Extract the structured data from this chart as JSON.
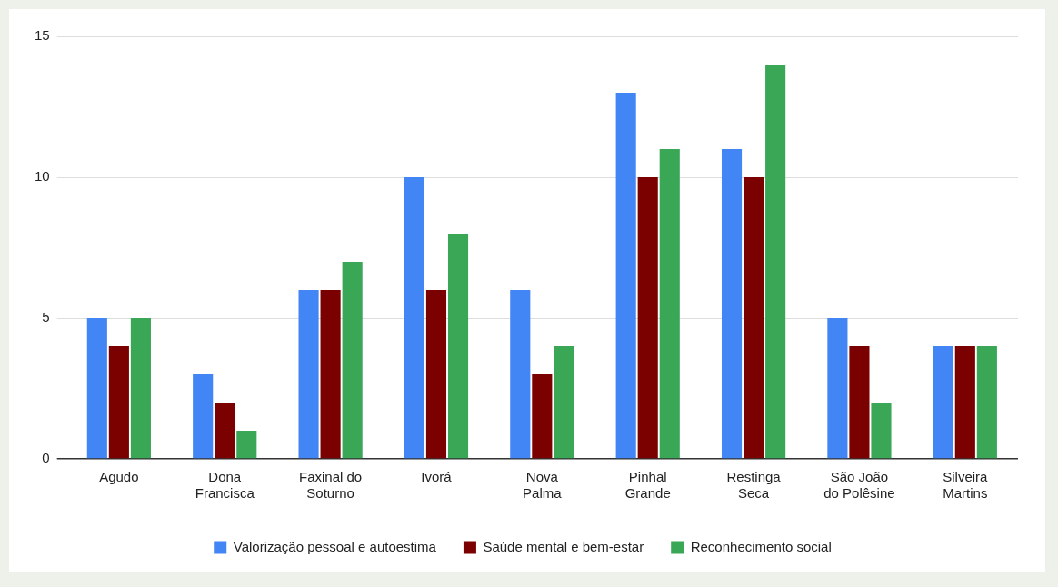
{
  "chart_data": {
    "type": "bar",
    "categories": [
      "Agudo",
      "Dona Francisca",
      "Faxinal do Soturno",
      "Ivorá",
      "Nova Palma",
      "Pinhal Grande",
      "Restinga Seca",
      "São João do Polêsine",
      "Silveira Martins"
    ],
    "series": [
      {
        "name": "Valorização pessoal e autoestima",
        "color": "#4285f4",
        "values": [
          5,
          3,
          6,
          10,
          6,
          13,
          11,
          5,
          4
        ]
      },
      {
        "name": "Saúde mental e bem-estar",
        "color": "#7b0000",
        "values": [
          4,
          2,
          6,
          6,
          3,
          10,
          10,
          4,
          4
        ]
      },
      {
        "name": "Reconhecimento social",
        "color": "#3aa757",
        "values": [
          5,
          1,
          7,
          8,
          4,
          11,
          14,
          2,
          4
        ]
      }
    ],
    "ylim": [
      0,
      15
    ],
    "yticks": [
      0,
      5,
      10,
      15
    ],
    "grid": "y",
    "legend": "bottom"
  }
}
